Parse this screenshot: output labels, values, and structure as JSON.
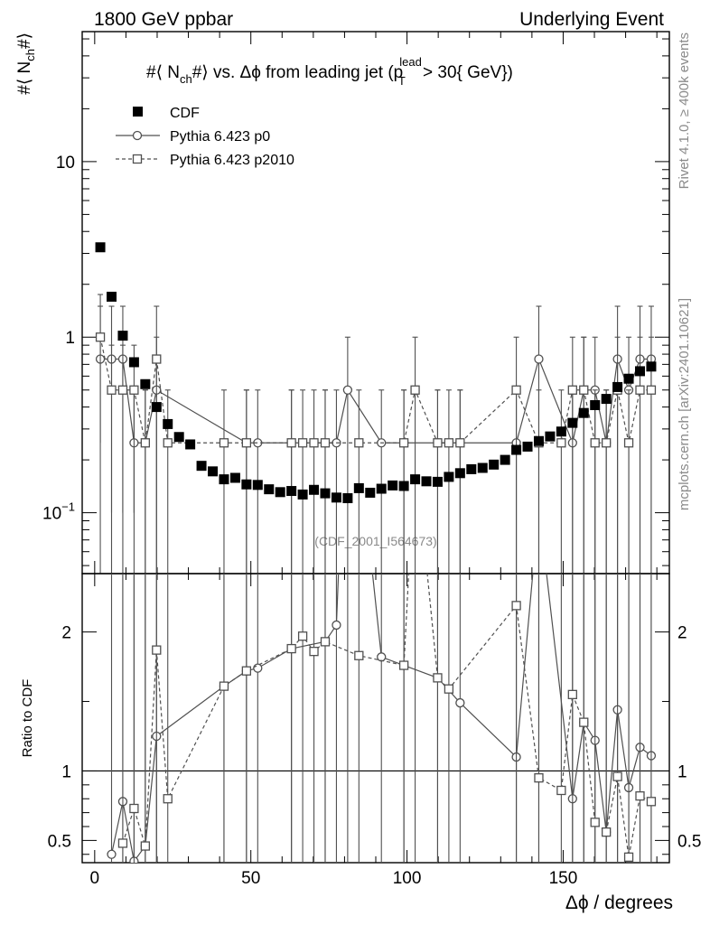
{
  "header": {
    "left": "1800 GeV ppbar",
    "right": "Underlying Event"
  },
  "side_labels": {
    "rivet": "Rivet 4.1.0, ≥ 400k events",
    "mcplots": "mcplots.cern.ch [arXiv:2401.10621]"
  },
  "chart_data": [
    {
      "type": "scatter",
      "title_parts": {
        "pre": "#⟨ N",
        "sub1": "ch",
        "mid": "#⟩ vs. Δϕ from leading jet  (p",
        "sup2": "lead",
        "sub2": "T",
        "post": " > 30{ GeV})"
      },
      "ylabel_parts": {
        "pre": "#⟨ N",
        "sub": "ch",
        "post": "#⟩"
      },
      "watermark": "(CDF_2001_I564673)",
      "xlim": [
        -4,
        184
      ],
      "ylim": [
        0.045,
        55
      ],
      "yscale": "log",
      "yticks": [
        {
          "v": 0.1,
          "base": "10",
          "exp": "−1"
        },
        {
          "v": 1,
          "base": "1",
          "exp": ""
        },
        {
          "v": 10,
          "base": "10",
          "exp": ""
        }
      ],
      "legend": {
        "placement": "top-left",
        "entries": [
          "CDF",
          "Pythia 6.423 p0",
          "Pythia 6.423 p2010"
        ]
      },
      "x": [
        1.8,
        5.4,
        9.0,
        12.6,
        16.2,
        19.8,
        23.4,
        27.0,
        30.6,
        34.2,
        37.8,
        41.4,
        45.0,
        48.6,
        52.2,
        55.8,
        59.4,
        63.0,
        66.6,
        70.2,
        73.8,
        77.4,
        81.0,
        84.6,
        88.2,
        91.8,
        95.4,
        99.0,
        102.6,
        106.2,
        109.8,
        113.4,
        117.0,
        120.6,
        124.2,
        127.8,
        131.4,
        135.0,
        138.6,
        142.2,
        145.8,
        149.4,
        153.0,
        156.6,
        160.2,
        163.8,
        167.4,
        171.0,
        174.6,
        178.2
      ],
      "series": [
        {
          "name": "CDF",
          "marker": "filled-square",
          "values": [
            3.25,
            1.7,
            1.02,
            0.72,
            0.54,
            0.4,
            0.32,
            0.27,
            0.245,
            0.185,
            0.172,
            0.155,
            0.158,
            0.145,
            0.144,
            0.136,
            0.131,
            0.133,
            0.127,
            0.135,
            0.129,
            0.122,
            0.121,
            0.138,
            0.13,
            0.137,
            0.143,
            0.142,
            0.155,
            0.151,
            0.15,
            0.16,
            0.168,
            0.177,
            0.18,
            0.188,
            0.2,
            0.228,
            0.238,
            0.256,
            0.272,
            0.29,
            0.325,
            0.37,
            0.41,
            0.445,
            0.52,
            0.58,
            0.64,
            0.68
          ]
        },
        {
          "name": "Pythia 6.423 p0",
          "marker": "open-circle",
          "line": "solid",
          "points": [
            [
              1.8,
              0.75,
              0.75
            ],
            [
              5.4,
              0.75,
              0.75
            ],
            [
              9.0,
              0.75,
              0.75
            ],
            [
              12.6,
              0.25,
              0.25
            ],
            [
              16.2,
              0.25,
              0.25
            ],
            [
              19.8,
              0.5,
              0.5
            ],
            [
              48.6,
              0.25,
              0.25
            ],
            [
              52.2,
              0.25,
              0.25
            ],
            [
              63.0,
              0.25,
              0.25
            ],
            [
              73.8,
              0.25,
              0.25
            ],
            [
              77.4,
              0.25,
              0.25
            ],
            [
              81.0,
              0.5,
              0.5
            ],
            [
              91.8,
              0.25,
              0.25
            ],
            [
              99.0,
              0.25,
              0.25
            ],
            [
              109.8,
              0.25,
              0.25
            ],
            [
              117.0,
              0.25,
              0.25
            ],
            [
              135.0,
              0.25,
              0.25
            ],
            [
              142.2,
              0.75,
              0.75
            ],
            [
              153.0,
              0.25,
              0.25
            ],
            [
              156.6,
              0.5,
              0.5
            ],
            [
              160.2,
              0.5,
              0.5
            ],
            [
              163.8,
              0.25,
              0.25
            ],
            [
              167.4,
              0.75,
              0.75
            ],
            [
              171.0,
              0.5,
              0.5
            ],
            [
              174.6,
              0.75,
              0.75
            ],
            [
              178.2,
              0.75,
              0.75
            ]
          ],
          "ratio": [
            [
              5.4,
              0.4
            ],
            [
              9.0,
              0.78
            ],
            [
              12.6,
              0.35
            ],
            [
              16.2,
              0.46
            ],
            [
              19.8,
              1.25
            ],
            [
              41.4,
              1.61
            ],
            [
              48.6,
              1.72
            ],
            [
              52.2,
              1.74
            ],
            [
              63.0,
              1.88
            ],
            [
              73.8,
              1.93
            ],
            [
              77.4,
              2.05
            ],
            [
              81.0,
              4.1
            ],
            [
              91.8,
              1.82
            ],
            [
              99.0,
              1.76
            ],
            [
              109.8,
              1.67
            ],
            [
              117.0,
              1.49
            ],
            [
              135.0,
              1.1
            ],
            [
              142.2,
              2.9
            ],
            [
              153.0,
              0.8
            ],
            [
              156.6,
              1.35
            ],
            [
              160.2,
              1.22
            ],
            [
              163.8,
              0.56
            ],
            [
              167.4,
              1.44
            ],
            [
              171.0,
              0.88
            ],
            [
              174.6,
              1.17
            ],
            [
              178.2,
              1.11
            ]
          ]
        },
        {
          "name": "Pythia 6.423 p2010",
          "marker": "open-square",
          "line": "dashed",
          "points": [
            [
              1.8,
              1.0,
              0.75
            ],
            [
              5.4,
              0.5,
              0.4
            ],
            [
              9.0,
              0.5,
              0.4
            ],
            [
              12.6,
              0.5,
              0.4
            ],
            [
              16.2,
              0.25,
              0.25
            ],
            [
              19.8,
              0.75,
              0.75
            ],
            [
              23.4,
              0.25,
              0.25
            ],
            [
              41.4,
              0.25,
              0.25
            ],
            [
              48.6,
              0.25,
              0.25
            ],
            [
              63.0,
              0.25,
              0.25
            ],
            [
              66.6,
              0.25,
              0.25
            ],
            [
              70.2,
              0.25,
              0.25
            ],
            [
              73.8,
              0.25,
              0.25
            ],
            [
              84.6,
              0.25,
              0.25
            ],
            [
              99.0,
              0.25,
              0.25
            ],
            [
              102.6,
              0.5,
              0.5
            ],
            [
              109.8,
              0.25,
              0.25
            ],
            [
              113.4,
              0.25,
              0.25
            ],
            [
              117.0,
              0.25,
              0.25
            ],
            [
              135.0,
              0.5,
              0.5
            ],
            [
              142.2,
              0.25,
              0.25
            ],
            [
              149.4,
              0.25,
              0.25
            ],
            [
              153.0,
              0.5,
              0.5
            ],
            [
              156.6,
              0.5,
              0.5
            ],
            [
              160.2,
              0.25,
              0.25
            ],
            [
              163.8,
              0.25,
              0.25
            ],
            [
              167.4,
              0.5,
              0.5
            ],
            [
              171.0,
              0.25,
              0.25
            ],
            [
              174.6,
              0.5,
              0.5
            ],
            [
              178.2,
              0.5,
              0.5
            ]
          ],
          "ratio": [
            [
              9.0,
              0.48
            ],
            [
              12.6,
              0.73
            ],
            [
              16.2,
              0.46
            ],
            [
              19.8,
              1.87
            ],
            [
              23.4,
              0.8
            ],
            [
              41.4,
              1.61
            ],
            [
              48.6,
              1.72
            ],
            [
              63.0,
              1.88
            ],
            [
              66.6,
              1.97
            ],
            [
              70.2,
              1.86
            ],
            [
              73.8,
              1.93
            ],
            [
              84.6,
              1.83
            ],
            [
              99.0,
              1.76
            ],
            [
              102.6,
              3.3
            ],
            [
              109.8,
              1.67
            ],
            [
              113.4,
              1.59
            ],
            [
              135.0,
              2.19
            ],
            [
              142.2,
              0.95
            ],
            [
              149.4,
              0.86
            ],
            [
              153.0,
              1.55
            ],
            [
              156.6,
              1.35
            ],
            [
              160.2,
              0.63
            ],
            [
              163.8,
              0.56
            ],
            [
              167.4,
              0.96
            ],
            [
              171.0,
              0.38
            ],
            [
              174.6,
              0.82
            ],
            [
              178.2,
              0.78
            ]
          ]
        }
      ]
    },
    {
      "type": "scatter",
      "ylabel": "Ratio to CDF",
      "xlabel": "Δϕ / degrees",
      "xlim": [
        -4,
        184
      ],
      "ylim": [
        0.34,
        2.42
      ],
      "yticks": [
        0.5,
        1,
        2
      ],
      "ytick_labels": [
        "0.5",
        "1",
        "2"
      ],
      "xticks": [
        0,
        50,
        100,
        150
      ],
      "xtick_labels": [
        "0",
        "50",
        "100",
        "150"
      ],
      "reference_line": 1
    }
  ]
}
